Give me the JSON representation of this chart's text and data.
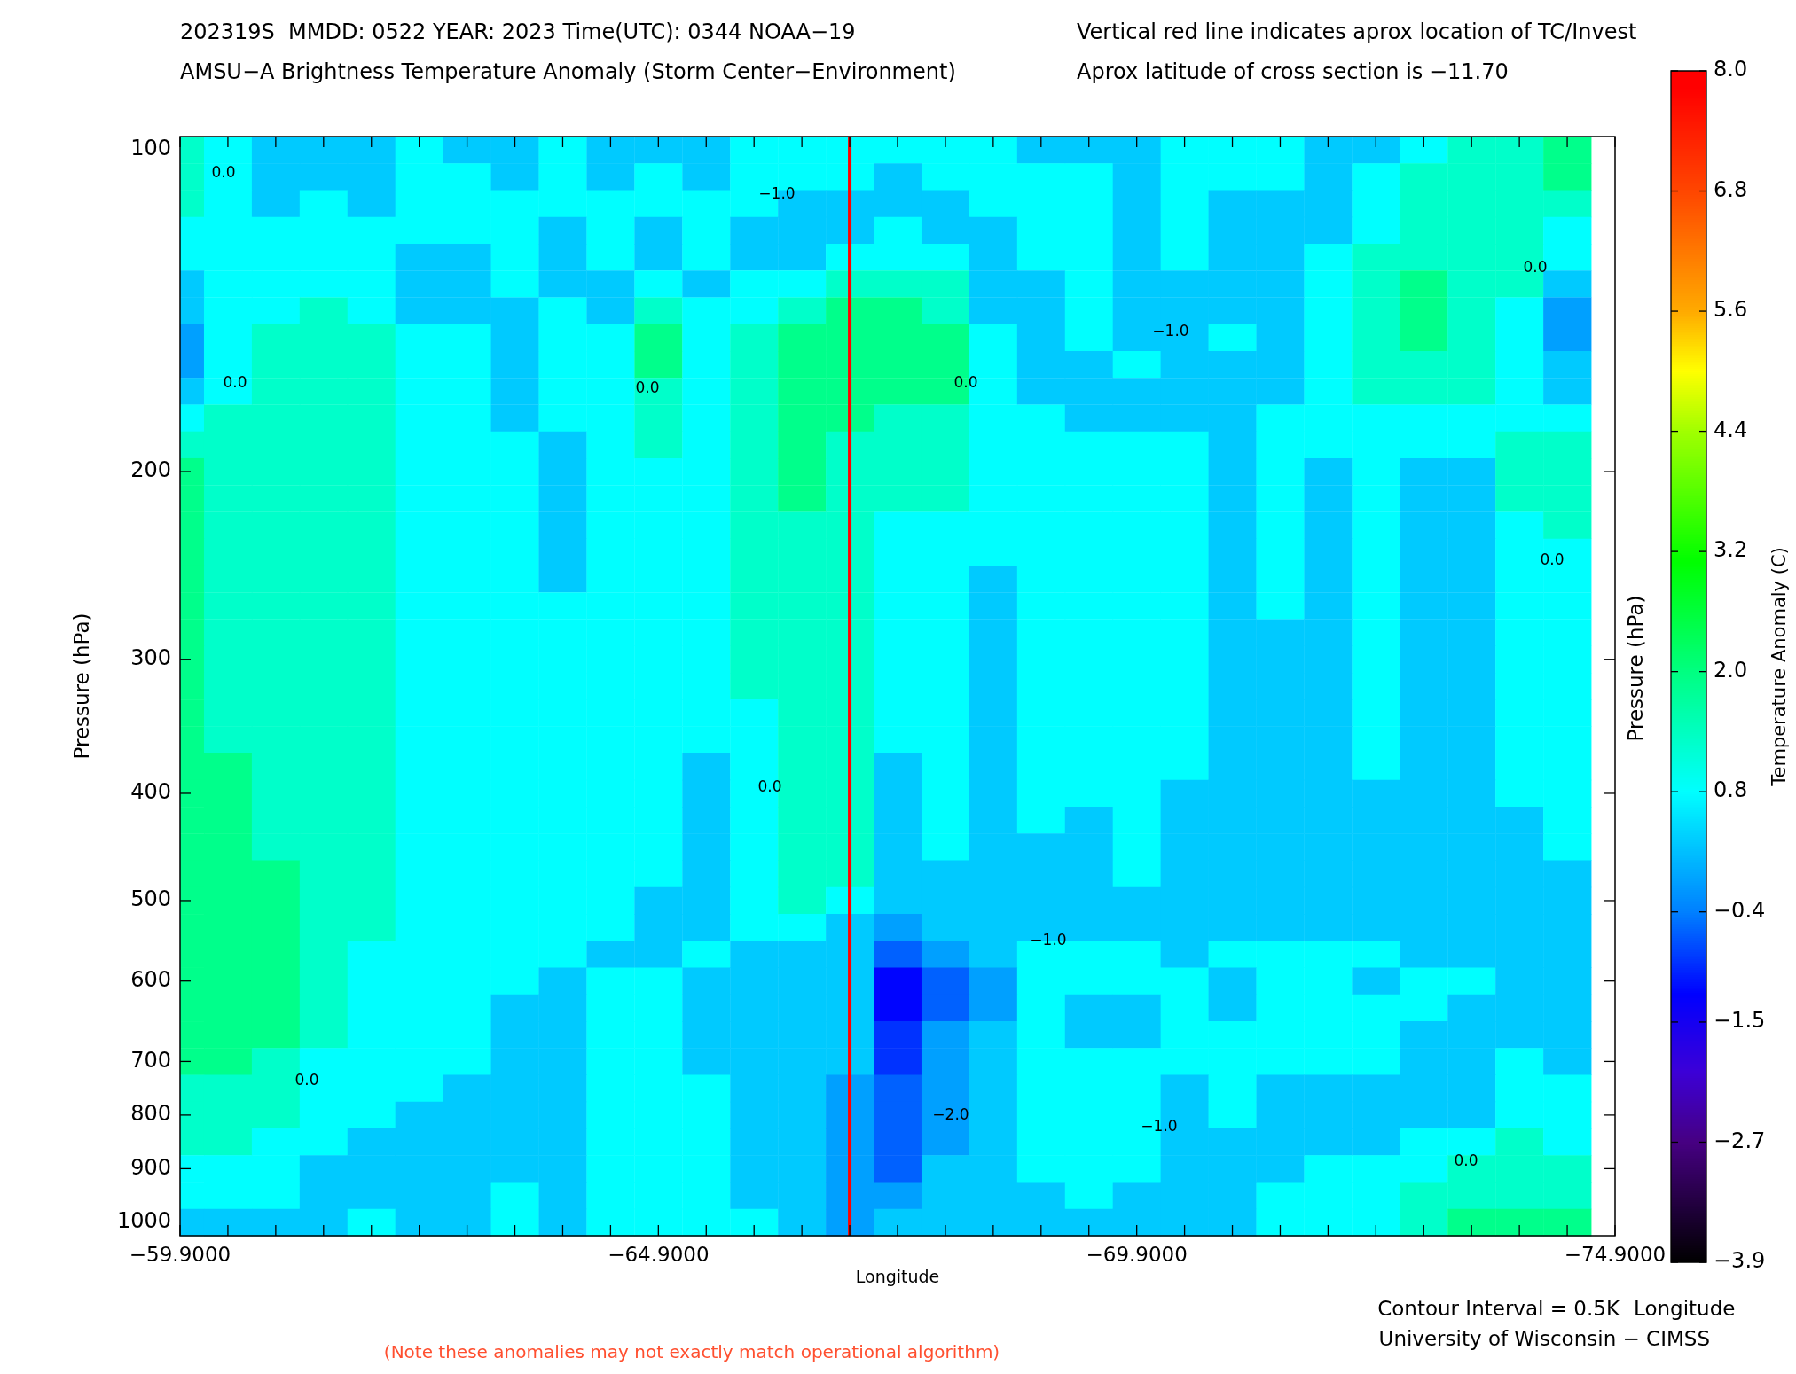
{
  "chart_data": {
    "type": "heatmap",
    "title": "202319S  MMDD: 0522 YEAR: 2023 Time(UTC): 0344 NOAA−19",
    "subtitle": "AMSU−A Brightness Temperature Anomaly (Storm Center−Environment)",
    "xlabel": "Longitude",
    "ylabel": "Pressure (hPa)",
    "y2label": "Pressure (hPa)",
    "clabel": "Temperature Anomaly (C)",
    "annotations": [
      "Vertical red line indicates aprox location of TC/Invest",
      "Aprox latitude of cross section is −11.70",
      "Contour Interval = 0.5K",
      "Longitude",
      "University of Wisconsin − CIMSS",
      "(Note these anomalies may not exactly match operational algorithm)",
      "0.0",
      "0.0",
      "0.0",
      "0.0",
      "0.0",
      "0.0",
      "0.0",
      "0.0",
      "0.0",
      "−1.0",
      "−1.0",
      "−1.0",
      "−1.0",
      "−2.0"
    ],
    "x": [
      -59.9,
      -60.4,
      -60.9,
      -61.4,
      -61.9,
      -62.4,
      -62.9,
      -63.4,
      -63.9,
      -64.4,
      -64.9,
      -65.4,
      -65.9,
      -66.4,
      -66.9,
      -67.4,
      -67.9,
      -68.4,
      -68.9,
      -69.4,
      -69.9,
      -70.4,
      -70.9,
      -71.4,
      -71.9,
      -72.4,
      -72.9,
      -73.4,
      -73.9,
      -74.4
    ],
    "y_categories": [
      "100",
      null,
      null,
      null,
      null,
      null,
      null,
      null,
      null,
      null,
      null,
      null,
      "200",
      null,
      null,
      null,
      null,
      null,
      null,
      "300",
      null,
      null,
      null,
      null,
      "400",
      null,
      null,
      null,
      "500",
      null,
      null,
      "600",
      null,
      null,
      "700",
      null,
      "800",
      null,
      "900",
      null,
      "1000"
    ],
    "cells": [
      [
        1.3,
        0.8,
        0.3,
        0.3,
        0.3,
        0.8,
        0.3,
        0.3,
        0.8,
        0.3,
        0.3,
        0.3,
        0.8,
        0.8,
        0.8,
        0.8,
        0.8,
        0.8,
        0.3,
        0.3,
        0.3,
        0.8,
        0.8,
        0.8,
        0.3,
        0.3,
        0.8,
        1.3,
        1.3,
        1.9
      ],
      [
        1.3,
        0.8,
        0.3,
        0.3,
        0.3,
        0.8,
        0.8,
        0.3,
        0.8,
        0.3,
        0.8,
        0.3,
        0.8,
        0.8,
        0.8,
        0.3,
        0.8,
        0.8,
        0.8,
        0.8,
        0.3,
        0.8,
        0.8,
        0.8,
        0.3,
        0.8,
        1.3,
        1.3,
        1.3,
        1.9
      ],
      [
        1.3,
        0.8,
        0.3,
        0.8,
        0.3,
        0.8,
        0.8,
        0.8,
        0.8,
        0.8,
        0.8,
        0.8,
        0.8,
        0.3,
        0.3,
        0.3,
        0.3,
        0.8,
        0.8,
        0.8,
        0.3,
        0.8,
        0.3,
        0.3,
        0.3,
        0.8,
        1.3,
        1.3,
        1.3,
        1.3
      ],
      [
        0.8,
        0.8,
        0.8,
        0.8,
        0.8,
        0.8,
        0.8,
        0.8,
        0.3,
        0.8,
        0.3,
        0.8,
        0.3,
        0.3,
        0.3,
        0.8,
        0.3,
        0.3,
        0.8,
        0.8,
        0.3,
        0.8,
        0.3,
        0.3,
        0.3,
        0.8,
        1.3,
        1.3,
        1.3,
        0.8
      ],
      [
        0.8,
        0.8,
        0.8,
        0.8,
        0.8,
        0.3,
        0.3,
        0.8,
        0.3,
        0.8,
        0.3,
        0.8,
        0.3,
        0.3,
        0.8,
        0.8,
        0.8,
        0.3,
        0.8,
        0.8,
        0.3,
        0.8,
        0.3,
        0.3,
        0.8,
        1.3,
        1.3,
        1.3,
        1.3,
        0.8
      ],
      [
        0.3,
        0.8,
        0.8,
        0.8,
        0.8,
        0.3,
        0.3,
        0.8,
        0.3,
        0.3,
        0.8,
        0.3,
        0.8,
        0.8,
        1.3,
        1.3,
        1.3,
        0.3,
        0.3,
        0.8,
        0.3,
        0.3,
        0.3,
        0.3,
        0.8,
        1.3,
        1.9,
        1.3,
        1.3,
        0.3
      ],
      [
        0.3,
        0.8,
        0.8,
        1.3,
        0.8,
        0.3,
        0.3,
        0.3,
        0.8,
        0.3,
        1.3,
        0.8,
        0.8,
        1.3,
        1.9,
        1.9,
        1.3,
        0.3,
        0.3,
        0.8,
        0.3,
        0.3,
        0.3,
        0.3,
        0.8,
        1.3,
        1.9,
        1.3,
        0.8,
        -0.1
      ],
      [
        -0.1,
        0.8,
        1.3,
        1.3,
        1.3,
        0.8,
        0.8,
        0.3,
        0.8,
        0.8,
        1.9,
        0.8,
        1.3,
        1.9,
        1.9,
        1.9,
        1.9,
        0.8,
        0.3,
        0.8,
        0.3,
        0.3,
        0.8,
        0.3,
        0.8,
        1.3,
        1.9,
        1.3,
        0.8,
        -0.1
      ],
      [
        -0.1,
        0.8,
        1.3,
        1.3,
        1.3,
        0.8,
        0.8,
        0.3,
        0.8,
        0.8,
        1.9,
        0.8,
        1.3,
        1.9,
        1.9,
        1.9,
        1.9,
        0.8,
        0.3,
        0.3,
        0.8,
        0.3,
        0.3,
        0.3,
        0.8,
        1.3,
        1.3,
        1.3,
        0.8,
        0.3
      ],
      [
        0.3,
        0.8,
        1.3,
        1.3,
        1.3,
        0.8,
        0.8,
        0.3,
        0.8,
        0.8,
        1.3,
        0.8,
        1.3,
        1.9,
        1.9,
        1.9,
        1.9,
        0.8,
        0.3,
        0.3,
        0.3,
        0.3,
        0.3,
        0.3,
        0.8,
        1.3,
        1.3,
        1.3,
        0.8,
        0.3
      ],
      [
        0.8,
        1.3,
        1.3,
        1.3,
        1.3,
        0.8,
        0.8,
        0.3,
        0.8,
        0.8,
        1.3,
        0.8,
        1.3,
        1.9,
        1.9,
        1.3,
        1.3,
        0.8,
        0.8,
        0.3,
        0.3,
        0.3,
        0.3,
        0.8,
        0.8,
        0.8,
        0.8,
        0.8,
        0.8,
        0.8
      ],
      [
        1.3,
        1.3,
        1.3,
        1.3,
        1.3,
        0.8,
        0.8,
        0.8,
        0.3,
        0.8,
        1.3,
        0.8,
        1.3,
        1.9,
        1.3,
        1.3,
        1.3,
        0.8,
        0.8,
        0.8,
        0.8,
        0.8,
        0.3,
        0.8,
        0.8,
        0.8,
        0.8,
        0.8,
        1.3,
        1.3
      ],
      [
        1.9,
        1.3,
        1.3,
        1.3,
        1.3,
        0.8,
        0.8,
        0.8,
        0.3,
        0.8,
        0.8,
        0.8,
        1.3,
        1.9,
        1.3,
        1.3,
        1.3,
        0.8,
        0.8,
        0.8,
        0.8,
        0.8,
        0.3,
        0.8,
        0.3,
        0.8,
        0.3,
        0.3,
        1.3,
        1.3
      ],
      [
        1.9,
        1.3,
        1.3,
        1.3,
        1.3,
        0.8,
        0.8,
        0.8,
        0.3,
        0.8,
        0.8,
        0.8,
        1.3,
        1.9,
        1.3,
        1.3,
        1.3,
        0.8,
        0.8,
        0.8,
        0.8,
        0.8,
        0.3,
        0.8,
        0.3,
        0.8,
        0.3,
        0.3,
        1.3,
        1.3
      ],
      [
        1.9,
        1.3,
        1.3,
        1.3,
        1.3,
        0.8,
        0.8,
        0.8,
        0.3,
        0.8,
        0.8,
        0.8,
        1.3,
        1.3,
        1.3,
        0.8,
        0.8,
        0.8,
        0.8,
        0.8,
        0.8,
        0.8,
        0.3,
        0.8,
        0.3,
        0.8,
        0.3,
        0.3,
        0.8,
        1.3
      ],
      [
        1.9,
        1.3,
        1.3,
        1.3,
        1.3,
        0.8,
        0.8,
        0.8,
        0.3,
        0.8,
        0.8,
        0.8,
        1.3,
        1.3,
        1.3,
        0.8,
        0.8,
        0.8,
        0.8,
        0.8,
        0.8,
        0.8,
        0.3,
        0.8,
        0.3,
        0.8,
        0.3,
        0.3,
        0.8,
        0.8
      ],
      [
        1.9,
        1.3,
        1.3,
        1.3,
        1.3,
        0.8,
        0.8,
        0.8,
        0.3,
        0.8,
        0.8,
        0.8,
        1.3,
        1.3,
        1.3,
        0.8,
        0.8,
        0.3,
        0.8,
        0.8,
        0.8,
        0.8,
        0.3,
        0.8,
        0.3,
        0.8,
        0.3,
        0.3,
        0.8,
        0.8
      ],
      [
        1.9,
        1.3,
        1.3,
        1.3,
        1.3,
        0.8,
        0.8,
        0.8,
        0.8,
        0.8,
        0.8,
        0.8,
        1.3,
        1.3,
        1.3,
        0.8,
        0.8,
        0.3,
        0.8,
        0.8,
        0.8,
        0.8,
        0.3,
        0.8,
        0.3,
        0.8,
        0.3,
        0.3,
        0.8,
        0.8
      ],
      [
        1.9,
        1.3,
        1.3,
        1.3,
        1.3,
        0.8,
        0.8,
        0.8,
        0.8,
        0.8,
        0.8,
        0.8,
        1.3,
        1.3,
        1.3,
        0.8,
        0.8,
        0.3,
        0.8,
        0.8,
        0.8,
        0.8,
        0.3,
        0.3,
        0.3,
        0.8,
        0.3,
        0.3,
        0.8,
        0.8
      ],
      [
        1.9,
        1.3,
        1.3,
        1.3,
        1.3,
        0.8,
        0.8,
        0.8,
        0.8,
        0.8,
        0.8,
        0.8,
        1.3,
        1.3,
        1.3,
        0.8,
        0.8,
        0.3,
        0.8,
        0.8,
        0.8,
        0.8,
        0.3,
        0.3,
        0.3,
        0.8,
        0.3,
        0.3,
        0.8,
        0.8
      ],
      [
        1.9,
        1.3,
        1.3,
        1.3,
        1.3,
        0.8,
        0.8,
        0.8,
        0.8,
        0.8,
        0.8,
        0.8,
        1.3,
        1.3,
        1.3,
        0.8,
        0.8,
        0.3,
        0.8,
        0.8,
        0.8,
        0.8,
        0.3,
        0.3,
        0.3,
        0.8,
        0.3,
        0.3,
        0.8,
        0.8
      ],
      [
        1.9,
        1.3,
        1.3,
        1.3,
        1.3,
        0.8,
        0.8,
        0.8,
        0.8,
        0.8,
        0.8,
        0.8,
        0.8,
        1.3,
        1.3,
        0.8,
        0.8,
        0.3,
        0.8,
        0.8,
        0.8,
        0.8,
        0.3,
        0.3,
        0.3,
        0.8,
        0.3,
        0.3,
        0.8,
        0.8
      ],
      [
        1.9,
        1.3,
        1.3,
        1.3,
        1.3,
        0.8,
        0.8,
        0.8,
        0.8,
        0.8,
        0.8,
        0.8,
        0.8,
        1.3,
        1.3,
        0.8,
        0.8,
        0.3,
        0.8,
        0.8,
        0.8,
        0.8,
        0.3,
        0.3,
        0.3,
        0.8,
        0.3,
        0.3,
        0.8,
        0.8
      ],
      [
        1.9,
        1.9,
        1.3,
        1.3,
        1.3,
        0.8,
        0.8,
        0.8,
        0.8,
        0.8,
        0.8,
        0.3,
        0.8,
        1.3,
        1.3,
        0.3,
        0.8,
        0.3,
        0.8,
        0.8,
        0.8,
        0.8,
        0.3,
        0.3,
        0.3,
        0.8,
        0.3,
        0.3,
        0.8,
        0.8
      ],
      [
        1.9,
        1.9,
        1.3,
        1.3,
        1.3,
        0.8,
        0.8,
        0.8,
        0.8,
        0.8,
        0.8,
        0.3,
        0.8,
        1.3,
        1.3,
        0.3,
        0.8,
        0.3,
        0.8,
        0.8,
        0.8,
        0.3,
        0.3,
        0.3,
        0.3,
        0.3,
        0.3,
        0.3,
        0.8,
        0.8
      ],
      [
        1.9,
        1.9,
        1.3,
        1.3,
        1.3,
        0.8,
        0.8,
        0.8,
        0.8,
        0.8,
        0.8,
        0.3,
        0.8,
        1.3,
        1.3,
        0.3,
        0.8,
        0.3,
        0.8,
        0.3,
        0.8,
        0.3,
        0.3,
        0.3,
        0.3,
        0.3,
        0.3,
        0.3,
        0.3,
        0.8
      ],
      [
        1.9,
        1.9,
        1.3,
        1.3,
        1.3,
        0.8,
        0.8,
        0.8,
        0.8,
        0.8,
        0.8,
        0.3,
        0.8,
        1.3,
        1.3,
        0.3,
        0.8,
        0.3,
        0.3,
        0.3,
        0.8,
        0.3,
        0.3,
        0.3,
        0.3,
        0.3,
        0.3,
        0.3,
        0.3,
        0.8
      ],
      [
        1.9,
        1.9,
        1.9,
        1.3,
        1.3,
        0.8,
        0.8,
        0.8,
        0.8,
        0.8,
        0.8,
        0.3,
        0.8,
        1.3,
        1.3,
        0.3,
        0.3,
        0.3,
        0.3,
        0.3,
        0.8,
        0.3,
        0.3,
        0.3,
        0.3,
        0.3,
        0.3,
        0.3,
        0.3,
        0.3
      ],
      [
        1.9,
        1.9,
        1.9,
        1.3,
        1.3,
        0.8,
        0.8,
        0.8,
        0.8,
        0.8,
        0.3,
        0.3,
        0.8,
        1.3,
        0.8,
        0.3,
        0.3,
        0.3,
        0.3,
        0.3,
        0.3,
        0.3,
        0.3,
        0.3,
        0.3,
        0.3,
        0.3,
        0.3,
        0.3,
        0.3
      ],
      [
        1.9,
        1.9,
        1.9,
        1.3,
        1.3,
        0.8,
        0.8,
        0.8,
        0.8,
        0.8,
        0.3,
        0.3,
        0.8,
        0.8,
        0.3,
        -0.1,
        0.3,
        0.3,
        0.3,
        0.3,
        0.3,
        0.3,
        0.3,
        0.3,
        0.3,
        0.3,
        0.3,
        0.3,
        0.3,
        0.3
      ],
      [
        1.9,
        1.9,
        1.9,
        1.3,
        0.8,
        0.8,
        0.8,
        0.8,
        0.8,
        0.3,
        0.3,
        0.8,
        0.3,
        0.3,
        0.3,
        -0.6,
        -0.1,
        0.3,
        0.8,
        0.8,
        0.8,
        0.3,
        0.8,
        0.8,
        0.8,
        0.8,
        0.3,
        0.3,
        0.3,
        0.3
      ],
      [
        1.9,
        1.9,
        1.9,
        1.3,
        0.8,
        0.8,
        0.8,
        0.8,
        0.3,
        0.8,
        0.8,
        0.3,
        0.3,
        0.3,
        0.3,
        -1.2,
        -0.6,
        -0.1,
        0.8,
        0.8,
        0.8,
        0.8,
        0.3,
        0.8,
        0.8,
        0.3,
        0.8,
        0.8,
        0.3,
        0.3
      ],
      [
        1.9,
        1.9,
        1.9,
        1.3,
        0.8,
        0.8,
        0.8,
        0.3,
        0.3,
        0.8,
        0.8,
        0.3,
        0.3,
        0.3,
        0.3,
        -1.2,
        -0.6,
        -0.1,
        0.8,
        0.3,
        0.3,
        0.8,
        0.3,
        0.8,
        0.8,
        0.8,
        0.8,
        0.3,
        0.3,
        0.3
      ],
      [
        1.9,
        1.9,
        1.9,
        1.3,
        0.8,
        0.8,
        0.8,
        0.3,
        0.3,
        0.8,
        0.8,
        0.3,
        0.3,
        0.3,
        0.3,
        -0.9,
        -0.1,
        0.3,
        0.8,
        0.3,
        0.3,
        0.8,
        0.8,
        0.8,
        0.8,
        0.8,
        0.3,
        0.3,
        0.3,
        0.3
      ],
      [
        1.9,
        1.9,
        1.3,
        0.8,
        0.8,
        0.8,
        0.8,
        0.3,
        0.3,
        0.8,
        0.8,
        0.3,
        0.3,
        0.3,
        0.3,
        -0.9,
        -0.1,
        0.3,
        0.8,
        0.8,
        0.8,
        0.8,
        0.8,
        0.8,
        0.8,
        0.8,
        0.3,
        0.3,
        0.8,
        0.3
      ],
      [
        1.3,
        1.3,
        1.3,
        0.8,
        0.8,
        0.8,
        0.3,
        0.3,
        0.3,
        0.8,
        0.8,
        0.8,
        0.3,
        0.3,
        -0.1,
        -0.6,
        -0.1,
        0.3,
        0.8,
        0.8,
        0.8,
        0.3,
        0.8,
        0.3,
        0.3,
        0.3,
        0.3,
        0.3,
        0.8,
        0.8
      ],
      [
        1.3,
        1.3,
        1.3,
        0.8,
        0.8,
        0.3,
        0.3,
        0.3,
        0.3,
        0.8,
        0.8,
        0.8,
        0.3,
        0.3,
        -0.1,
        -0.6,
        -0.1,
        0.3,
        0.8,
        0.8,
        0.8,
        0.3,
        0.8,
        0.3,
        0.3,
        0.3,
        0.3,
        0.3,
        0.8,
        0.8
      ],
      [
        1.3,
        1.3,
        0.8,
        0.8,
        0.3,
        0.3,
        0.3,
        0.3,
        0.3,
        0.8,
        0.8,
        0.8,
        0.3,
        0.3,
        -0.1,
        -0.6,
        -0.1,
        0.3,
        0.8,
        0.8,
        0.8,
        0.3,
        0.3,
        0.3,
        0.3,
        0.3,
        0.8,
        0.8,
        1.3,
        0.8
      ],
      [
        0.8,
        0.8,
        0.8,
        0.3,
        0.3,
        0.3,
        0.3,
        0.3,
        0.3,
        0.8,
        0.8,
        0.8,
        0.3,
        0.3,
        -0.1,
        -0.6,
        0.3,
        0.3,
        0.8,
        0.8,
        0.8,
        0.3,
        0.3,
        0.3,
        0.8,
        0.8,
        0.8,
        1.3,
        1.3,
        1.3
      ],
      [
        0.8,
        0.8,
        0.8,
        0.3,
        0.3,
        0.3,
        0.3,
        0.8,
        0.3,
        0.8,
        0.8,
        0.8,
        0.3,
        0.3,
        -0.1,
        -0.1,
        0.3,
        0.3,
        0.3,
        0.8,
        0.3,
        0.3,
        0.3,
        0.8,
        0.8,
        0.8,
        1.3,
        1.3,
        1.3,
        1.3
      ],
      [
        0.3,
        0.3,
        0.3,
        0.3,
        0.8,
        0.3,
        0.3,
        0.8,
        0.3,
        0.8,
        0.8,
        0.8,
        0.8,
        0.3,
        -0.1,
        0.3,
        0.3,
        0.3,
        0.3,
        0.3,
        0.3,
        0.3,
        0.3,
        0.8,
        0.8,
        0.8,
        1.3,
        1.9,
        1.9,
        1.9
      ]
    ],
    "clim": [
      -3.9,
      8.0
    ],
    "cticks": [
      {
        "value": 8,
        "label": "8.0"
      },
      6.8,
      5.6,
      4.4,
      3.2,
      {
        "value": 2,
        "label": "2.0"
      },
      0.8,
      {
        "value": -0.4,
        "label": "−0.4"
      },
      {
        "value": -1.5,
        "label": "−1.5"
      },
      {
        "value": -2.7,
        "label": "−2.7"
      },
      {
        "value": -3.9,
        "label": "−3.9"
      }
    ],
    "xlim": [
      -59.9,
      -74.9
    ],
    "xticks": [
      {
        "value": -59.9,
        "label": "−59.9000"
      },
      {
        "value": -60.4,
        "label": null
      },
      {
        "value": -60.9,
        "label": null
      },
      {
        "value": -61.4,
        "label": null
      },
      {
        "value": -61.9,
        "label": null
      },
      {
        "value": -62.4,
        "label": null
      },
      {
        "value": -62.9,
        "label": null
      },
      {
        "value": -63.4,
        "label": null
      },
      {
        "value": -63.9,
        "label": null
      },
      {
        "value": -64.4,
        "label": null
      },
      {
        "value": -64.9,
        "label": "−64.9000"
      },
      {
        "value": -65.4,
        "label": null
      },
      {
        "value": -65.9,
        "label": null
      },
      {
        "value": -66.4,
        "label": null
      },
      {
        "value": -66.9,
        "label": null
      },
      {
        "value": -67.4,
        "label": null
      },
      {
        "value": -67.9,
        "label": null
      },
      {
        "value": -68.4,
        "label": null
      },
      {
        "value": -68.9,
        "label": null
      },
      {
        "value": -69.4,
        "label": null
      },
      {
        "value": -69.9,
        "label": "−69.9000"
      },
      {
        "value": -70.4,
        "label": null
      },
      {
        "value": -70.9,
        "label": null
      },
      {
        "value": -71.4,
        "label": null
      },
      {
        "value": -71.9,
        "label": null
      },
      {
        "value": -72.4,
        "label": null
      },
      {
        "value": -72.9,
        "label": null
      },
      {
        "value": -73.4,
        "label": null
      },
      {
        "value": -73.9,
        "label": null
      },
      {
        "value": -74.4,
        "label": null
      },
      {
        "value": -74.9,
        "label": "−74.9000"
      }
    ],
    "ref_lines": [
      {
        "axis": "x",
        "value": -66.9,
        "color": "#ff0000"
      }
    ]
  }
}
